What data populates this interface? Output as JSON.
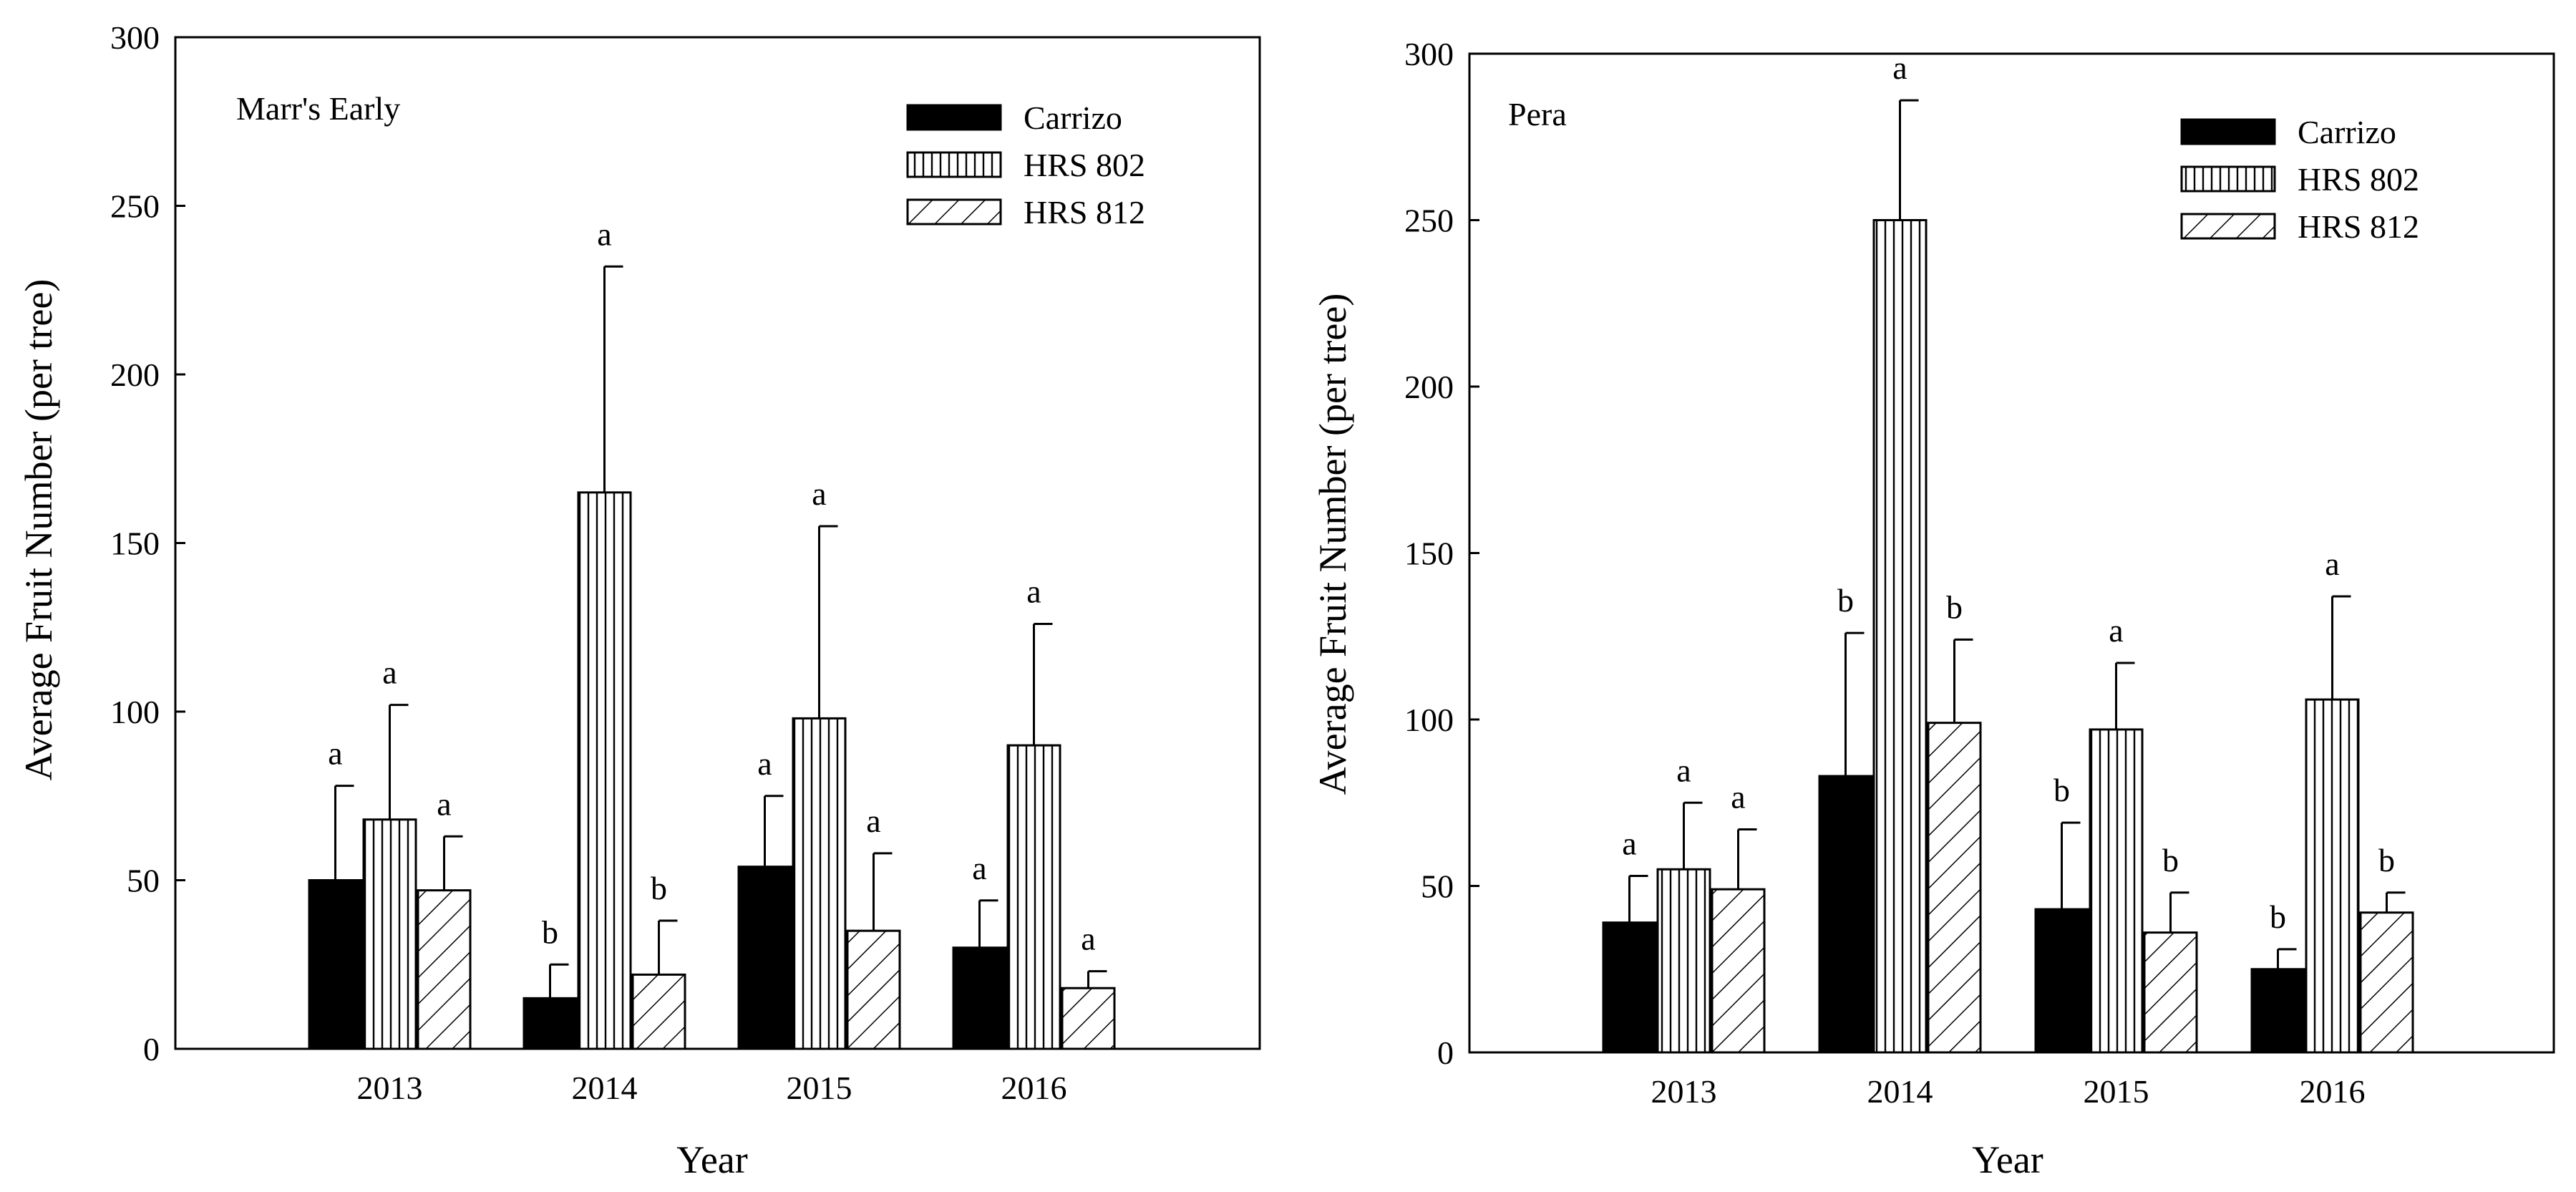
{
  "colors": {
    "carrizo": "#000000",
    "hrs802": "#ffffff",
    "hrs812": "#ffffff",
    "axis": "#000000"
  },
  "chart_data": [
    {
      "type": "bar",
      "title": "Marr's Early",
      "xlabel": "Year",
      "ylabel": "Average Fruit Number (per tree)",
      "categories": [
        "2013",
        "2014",
        "2015",
        "2016"
      ],
      "ylim": [
        0,
        300
      ],
      "yticks": [
        "0",
        "50",
        "100",
        "150",
        "200",
        "250",
        "300"
      ],
      "legend_position": "top-right",
      "series": [
        {
          "name": "Carrizo",
          "pattern": "solid",
          "values": [
            50,
            15,
            54,
            30
          ],
          "errors": [
            28,
            10,
            21,
            14
          ],
          "letters": [
            "a",
            "b",
            "a",
            "a"
          ]
        },
        {
          "name": "HRS 802",
          "pattern": "vertical-lines",
          "values": [
            68,
            165,
            98,
            90
          ],
          "errors": [
            34,
            67,
            57,
            36
          ],
          "letters": [
            "a",
            "a",
            "a",
            "a"
          ]
        },
        {
          "name": "HRS 812",
          "pattern": "diagonal-lines",
          "values": [
            47,
            22,
            35,
            18
          ],
          "errors": [
            16,
            16,
            23,
            5
          ],
          "letters": [
            "a",
            "b",
            "a",
            "a"
          ]
        }
      ]
    },
    {
      "type": "bar",
      "title": "Pera",
      "xlabel": "Year",
      "ylabel": "Average Fruit Number (per tree)",
      "categories": [
        "2013",
        "2014",
        "2015",
        "2016"
      ],
      "ylim": [
        0,
        300
      ],
      "yticks": [
        "0",
        "50",
        "100",
        "150",
        "200",
        "250",
        "300"
      ],
      "legend_position": "top-right",
      "series": [
        {
          "name": "Carrizo",
          "pattern": "solid",
          "values": [
            39,
            83,
            43,
            25
          ],
          "errors": [
            14,
            43,
            26,
            6
          ],
          "letters": [
            "a",
            "b",
            "b",
            "b"
          ]
        },
        {
          "name": "HRS 802",
          "pattern": "vertical-lines",
          "values": [
            55,
            250,
            97,
            106
          ],
          "errors": [
            20,
            36,
            20,
            31
          ],
          "letters": [
            "a",
            "a",
            "a",
            "a"
          ]
        },
        {
          "name": "HRS 812",
          "pattern": "diagonal-lines",
          "values": [
            49,
            99,
            36,
            42
          ],
          "errors": [
            18,
            25,
            12,
            6
          ],
          "letters": [
            "a",
            "b",
            "b",
            "b"
          ]
        }
      ]
    }
  ]
}
